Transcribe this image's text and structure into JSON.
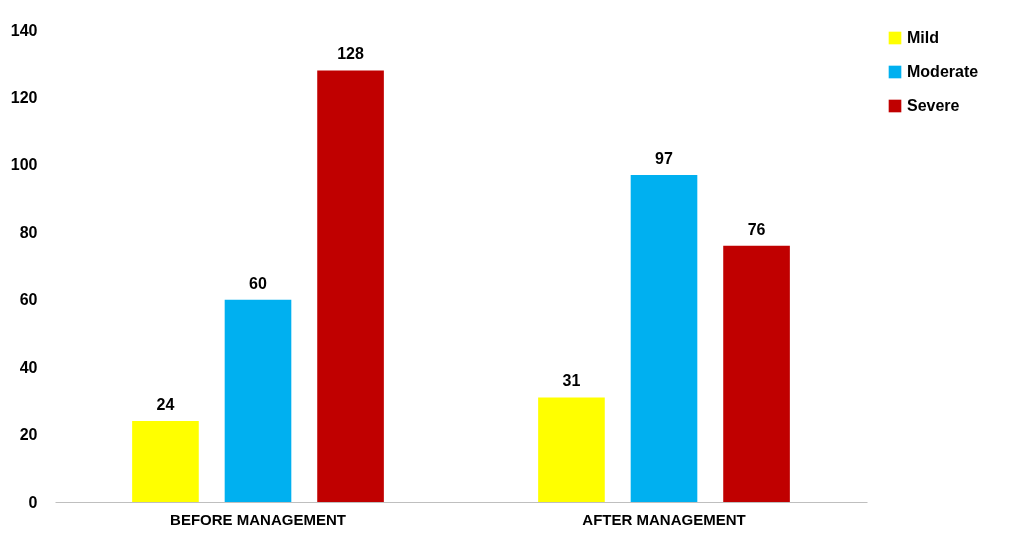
{
  "chart_data": {
    "type": "bar",
    "categories": [
      "BEFORE MANAGEMENT",
      "AFTER MANAGEMENT"
    ],
    "series": [
      {
        "name": "Mild",
        "color": "#ffff00",
        "values": [
          24,
          31
        ]
      },
      {
        "name": "Moderate",
        "color": "#00b0f0",
        "values": [
          60,
          97
        ]
      },
      {
        "name": "Severe",
        "color": "#c00000",
        "values": [
          128,
          76
        ]
      }
    ],
    "ylim": [
      0,
      140
    ],
    "yticks": [
      0,
      20,
      40,
      60,
      80,
      100,
      120,
      140
    ],
    "grid": false,
    "legend": "right",
    "data_labels": true
  }
}
